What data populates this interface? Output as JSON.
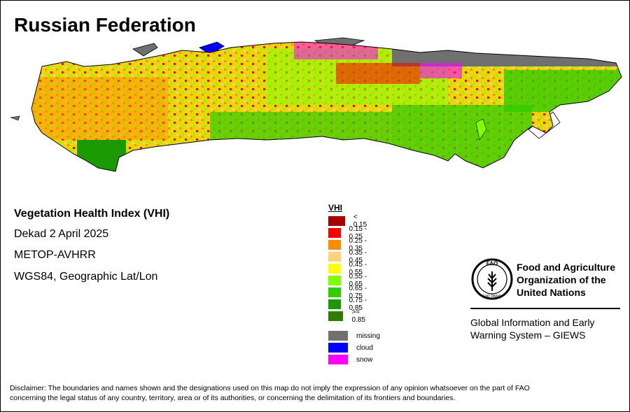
{
  "title": "Russian Federation",
  "info": {
    "index_name": "Vegetation Health Index (VHI)",
    "period": "Dekad 2 April 2025",
    "sensor": "METOP-AVHRR",
    "projection": "WGS84, Geographic Lat/Lon"
  },
  "legend": {
    "title": "VHI",
    "classes": [
      {
        "label": "< 0.15",
        "color": "#a80000"
      },
      {
        "label": "0.15 - 0.25",
        "color": "#ff0000"
      },
      {
        "label": "0.25 - 0.35",
        "color": "#ff8c00"
      },
      {
        "label": "0.35 - 0.45",
        "color": "#ffd27f"
      },
      {
        "label": "0.45 - 0.55",
        "color": "#ffff00"
      },
      {
        "label": "0.55 - 0.65",
        "color": "#7fff00"
      },
      {
        "label": "0.65 - 0.75",
        "color": "#33cc00"
      },
      {
        "label": "0.75 - 0.85",
        "color": "#1a9900"
      },
      {
        "label": ">= 0.85",
        "color": "#2e7d00"
      }
    ],
    "other": [
      {
        "label": "missing",
        "color": "#707070"
      },
      {
        "label": "cloud",
        "color": "#0000ff"
      },
      {
        "label": "snow",
        "color": "#ff00ff"
      }
    ]
  },
  "organization": {
    "name_line1": "Food and Agriculture",
    "name_line2": "Organization of the",
    "name_line3": "United Nations",
    "system_line1": "Global Information and Early",
    "system_line2": "Warning System – GIEWS",
    "logo_text_top": "FAO",
    "logo_text_bottom": "FIAT PANIS"
  },
  "disclaimer_line1": "Disclaimer: The boundaries and names shown and the designations used on this map do not imply the expression of any opinion whatsoever on the part of FAO",
  "disclaimer_line2": "concerning the legal status of any country, territory, area or of its authorities, or concerning the delimitation of its frontiers and boundaries."
}
